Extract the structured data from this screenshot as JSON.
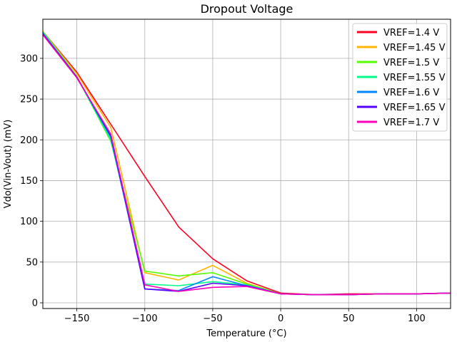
{
  "chart_data": {
    "type": "line",
    "title": "Dropout Voltage",
    "xlabel": "Temperature (°C)",
    "ylabel": "Vdo(Vin-Vout) (mV)",
    "xlim": [
      -175,
      125
    ],
    "ylim": [
      -7,
      348
    ],
    "xticks": [
      -150,
      -100,
      -50,
      0,
      50,
      100
    ],
    "xtick_labels": [
      "−150",
      "−100",
      "−50",
      "0",
      "50",
      "100"
    ],
    "yticks": [
      0,
      50,
      100,
      150,
      200,
      250,
      300
    ],
    "ytick_labels": [
      "0",
      "50",
      "100",
      "150",
      "200",
      "250",
      "300"
    ],
    "grid": true,
    "legend_position": "top-right",
    "x": [
      -175,
      -150,
      -125,
      -100,
      -75,
      -50,
      -25,
      0,
      25,
      50,
      75,
      100,
      125
    ],
    "series": [
      {
        "name": "VREF=1.4 V",
        "color": "#ff0022",
        "values": [
          333,
          283,
          219,
          155,
          93,
          54,
          27,
          12,
          10,
          11,
          11,
          11,
          12
        ]
      },
      {
        "name": "VREF=1.45 V",
        "color": "#ffb400",
        "values": [
          333,
          281,
          215,
          37,
          28,
          46,
          24,
          11,
          10,
          10,
          11,
          11,
          12
        ]
      },
      {
        "name": "VREF=1.5 V",
        "color": "#55ff00",
        "values": [
          333,
          278,
          198,
          39,
          33,
          37,
          23,
          11,
          10,
          10,
          11,
          11,
          12
        ]
      },
      {
        "name": "VREF=1.55 V",
        "color": "#00ff8a",
        "values": [
          332,
          277,
          200,
          23,
          21,
          26,
          22,
          11,
          10,
          10,
          11,
          11,
          12
        ]
      },
      {
        "name": "VREF=1.6 V",
        "color": "#0088ff",
        "values": [
          331,
          277,
          203,
          17,
          15,
          32,
          21,
          11,
          10,
          10,
          11,
          11,
          12
        ]
      },
      {
        "name": "VREF=1.65 V",
        "color": "#5500ff",
        "values": [
          330,
          277,
          205,
          17,
          14,
          24,
          21,
          11,
          10,
          10,
          11,
          11,
          12
        ]
      },
      {
        "name": "VREF=1.7 V",
        "color": "#ff00bb",
        "values": [
          329,
          276,
          207,
          22,
          14,
          19,
          20,
          11,
          10,
          10,
          11,
          11,
          12
        ]
      }
    ]
  }
}
